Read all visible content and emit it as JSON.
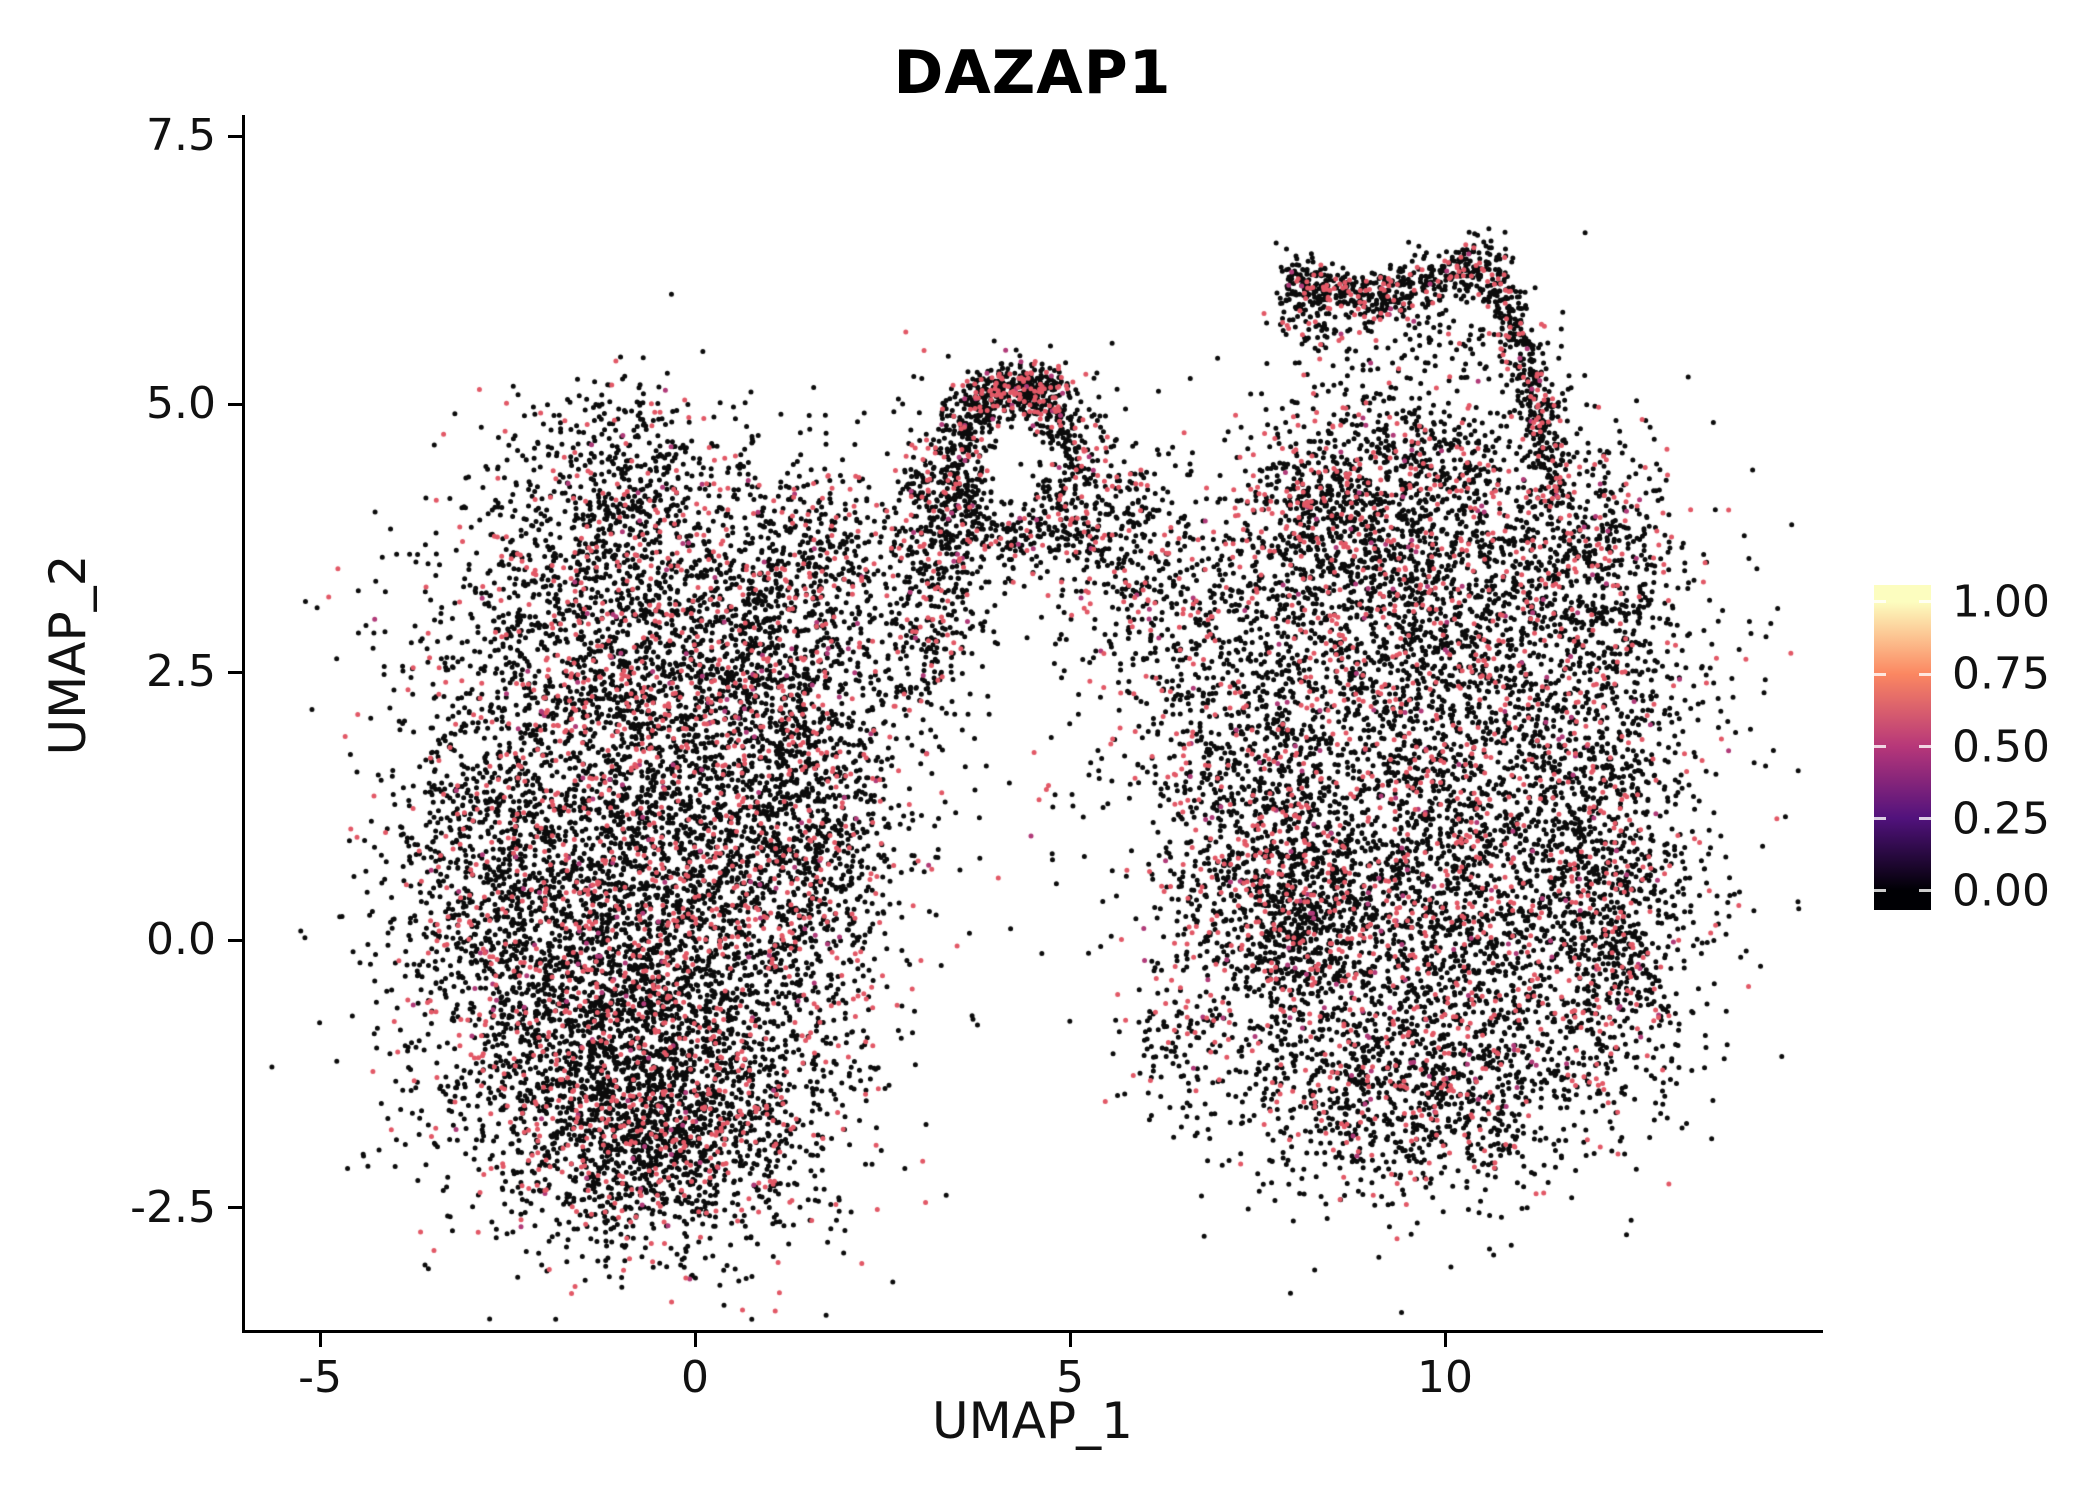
{
  "chart_data": {
    "type": "scatter",
    "title": "DAZAP1",
    "xlabel": "UMAP_1",
    "ylabel": "UMAP_2",
    "xlim": [
      -6,
      15
    ],
    "ylim": [
      -3.64,
      7.7
    ],
    "x_ticks": [
      -5,
      0,
      5,
      10
    ],
    "x_tick_labels": [
      "-5",
      "0",
      "5",
      "10"
    ],
    "y_ticks": [
      7.5,
      5.0,
      2.5,
      0.0,
      -2.5
    ],
    "y_tick_labels": [
      "7.5",
      "5.0",
      "2.5",
      "0.0",
      "-2.5"
    ],
    "grid": false,
    "legend": {
      "position": "right",
      "labels": [
        "1.00",
        "0.75",
        "0.50",
        "0.25",
        "0.00"
      ],
      "values": [
        1.0,
        0.75,
        0.5,
        0.25,
        0.0
      ],
      "colormap": "magma",
      "stops": [
        "#000004",
        "#51127c",
        "#b73779",
        "#fb8761",
        "#fcfdbf"
      ]
    },
    "point": {
      "radius": 2.5,
      "colors": {
        "zero": "#0b0b0b",
        "mid": "#b03a78",
        "high": "#e25866"
      },
      "fractions": {
        "high": 0.15,
        "mid": 0.018
      }
    },
    "seed": 42,
    "description": "UMAP feature plot of DAZAP1 expression: two large cell lobes joined by an arch-shaped bridge, with a hook-shaped cluster at top right; most cells near zero expression (black) with scattered moderate-expression cells (pink).",
    "clusters": {
      "gauss": [
        [
          -0.9,
          -1.2,
          1.35,
          0.85,
          2000
        ],
        [
          -0.3,
          -1.8,
          1.0,
          0.55,
          1000
        ],
        [
          -0.8,
          0.2,
          1.5,
          0.8,
          1700
        ],
        [
          -0.6,
          1.6,
          1.5,
          0.9,
          1700
        ],
        [
          -0.9,
          3.0,
          1.3,
          0.8,
          1300
        ],
        [
          -0.9,
          4.3,
          0.75,
          0.5,
          450
        ],
        [
          1.2,
          2.4,
          0.7,
          1.0,
          650
        ],
        [
          1.5,
          0.8,
          0.6,
          0.9,
          550
        ],
        [
          -2.9,
          0.8,
          0.6,
          0.9,
          450
        ],
        [
          1.8,
          3.5,
          0.5,
          0.5,
          250
        ],
        [
          9.6,
          3.4,
          1.4,
          0.8,
          1500
        ],
        [
          9.9,
          1.6,
          1.8,
          1.0,
          2100
        ],
        [
          9.7,
          -0.3,
          1.6,
          0.9,
          1700
        ],
        [
          9.5,
          -1.5,
          1.2,
          0.5,
          700
        ],
        [
          7.6,
          1.2,
          0.55,
          1.3,
          600
        ],
        [
          8.0,
          0.2,
          0.5,
          0.5,
          450
        ],
        [
          12.2,
          1.3,
          0.55,
          1.2,
          600
        ],
        [
          11.9,
          3.6,
          0.7,
          0.6,
          450
        ],
        [
          8.4,
          4.0,
          0.6,
          0.45,
          350
        ],
        [
          9.5,
          4.5,
          0.8,
          0.35,
          350
        ],
        [
          12.3,
          -0.3,
          0.5,
          0.7,
          350
        ],
        [
          6.6,
          1.0,
          0.3,
          1.2,
          150
        ],
        [
          3.1,
          3.3,
          0.4,
          0.8,
          400
        ],
        [
          3.4,
          4.1,
          0.3,
          0.4,
          220
        ],
        [
          5.3,
          4.0,
          0.45,
          0.5,
          260
        ],
        [
          5.9,
          3.2,
          0.5,
          0.7,
          200
        ],
        [
          6.5,
          2.6,
          0.5,
          0.8,
          130
        ],
        [
          4.3,
          5.15,
          0.35,
          0.12,
          150
        ],
        [
          5.0,
          1.8,
          0.8,
          0.8,
          25
        ],
        [
          9.6,
          5.5,
          0.8,
          0.3,
          110
        ],
        [
          8.15,
          5.85,
          0.3,
          0.25,
          90
        ],
        [
          6.3,
          -1.0,
          0.3,
          0.4,
          60
        ]
      ],
      "rings": [
        [
          4.25,
          4.4,
          0.72,
          0.16,
          450,
          0,
          360
        ],
        [
          4.25,
          4.4,
          0.8,
          0.13,
          280,
          25,
          155
        ]
      ],
      "bands": [
        [
          7.9,
          6.15,
          9.0,
          6.0,
          0.12,
          220
        ],
        [
          9.0,
          6.0,
          10.6,
          6.3,
          0.15,
          320
        ],
        [
          10.6,
          6.3,
          11.25,
          5.0,
          0.12,
          260
        ],
        [
          11.25,
          5.0,
          11.5,
          4.15,
          0.12,
          140
        ]
      ]
    }
  }
}
